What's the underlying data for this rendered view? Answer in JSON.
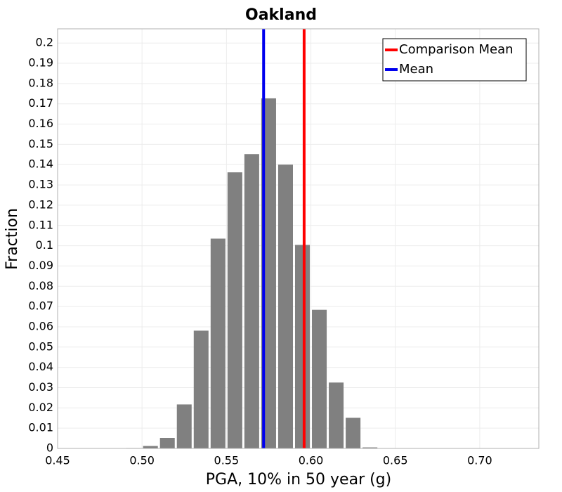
{
  "chart_data": {
    "type": "bar",
    "title": "Oakland",
    "xlabel": "PGA, 10% in 50 year (g)",
    "ylabel": "Fraction",
    "xlim": [
      0.45,
      0.735
    ],
    "ylim": [
      0,
      0.207
    ],
    "xticks": [
      0.45,
      0.5,
      0.55,
      0.6,
      0.65,
      0.7
    ],
    "xtick_labels": [
      "0.45",
      "0.50",
      "0.55",
      "0.60",
      "0.65",
      "0.70"
    ],
    "yticks": [
      0,
      0.01,
      0.02,
      0.03,
      0.04,
      0.05,
      0.06,
      0.07,
      0.08,
      0.09,
      0.1,
      0.11,
      0.12,
      0.13,
      0.14,
      0.15,
      0.16,
      0.17,
      0.18,
      0.19,
      0.2
    ],
    "ytick_labels": [
      "0",
      "0.01",
      "0.02",
      "0.03",
      "0.04",
      "0.05",
      "0.06",
      "0.07",
      "0.08",
      "0.09",
      "0.1",
      "0.11",
      "0.12",
      "0.13",
      "0.14",
      "0.15",
      "0.16",
      "0.17",
      "0.18",
      "0.19",
      "0.2"
    ],
    "bin_width": 0.01,
    "bin_centers": [
      0.495,
      0.505,
      0.515,
      0.525,
      0.535,
      0.545,
      0.555,
      0.565,
      0.575,
      0.585,
      0.595,
      0.605,
      0.615,
      0.625,
      0.635
    ],
    "values": [
      0.0002,
      0.0012,
      0.0052,
      0.0217,
      0.0581,
      0.1035,
      0.1362,
      0.1452,
      0.1727,
      0.14,
      0.1004,
      0.0684,
      0.0325,
      0.0151,
      0.0005
    ],
    "bar_color": "#808080",
    "grid": true,
    "lines": [
      {
        "name": "Comparison Mean",
        "x": 0.596,
        "color": "#ff0000"
      },
      {
        "name": "Mean",
        "x": 0.572,
        "color": "#0000ee"
      }
    ],
    "legend": {
      "position": "top-right",
      "entries": [
        {
          "label": "Comparison Mean",
          "color": "#ff0000"
        },
        {
          "label": "Mean",
          "color": "#0000ee"
        }
      ]
    }
  }
}
